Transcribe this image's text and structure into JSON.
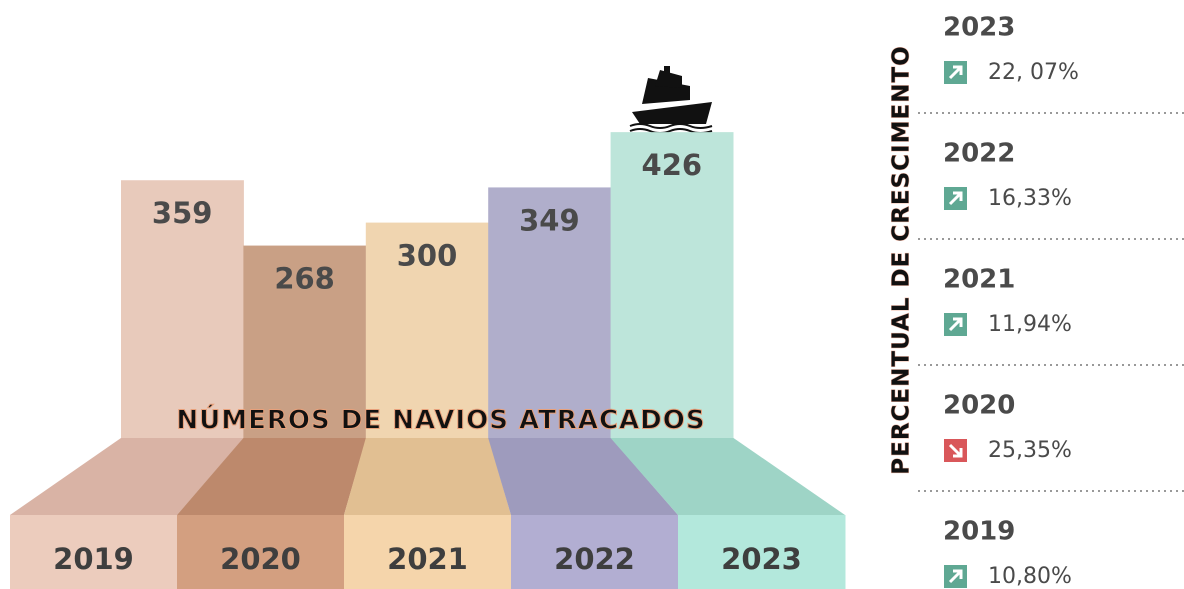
{
  "chart_data": {
    "type": "bar",
    "title": "NÚMEROS DE NAVIOS ATRACADOS",
    "categories": [
      "2019",
      "2020",
      "2021",
      "2022",
      "2023"
    ],
    "values": [
      359,
      268,
      300,
      349,
      426
    ],
    "colors": [
      "#e8cabb",
      "#c9a085",
      "#f0d5b0",
      "#b0aecb",
      "#bde5da"
    ]
  },
  "growth": {
    "title": "PERCENTUAL DE CRESCIMENTO",
    "items": [
      {
        "year": "2023",
        "label": "22, 07%",
        "direction": "up"
      },
      {
        "year": "2022",
        "label": "16,33%",
        "direction": "up"
      },
      {
        "year": "2021",
        "label": "11,94%",
        "direction": "up"
      },
      {
        "year": "2020",
        "label": "25,35%",
        "direction": "down"
      },
      {
        "year": "2019",
        "label": "10,80%",
        "direction": "up"
      }
    ]
  }
}
